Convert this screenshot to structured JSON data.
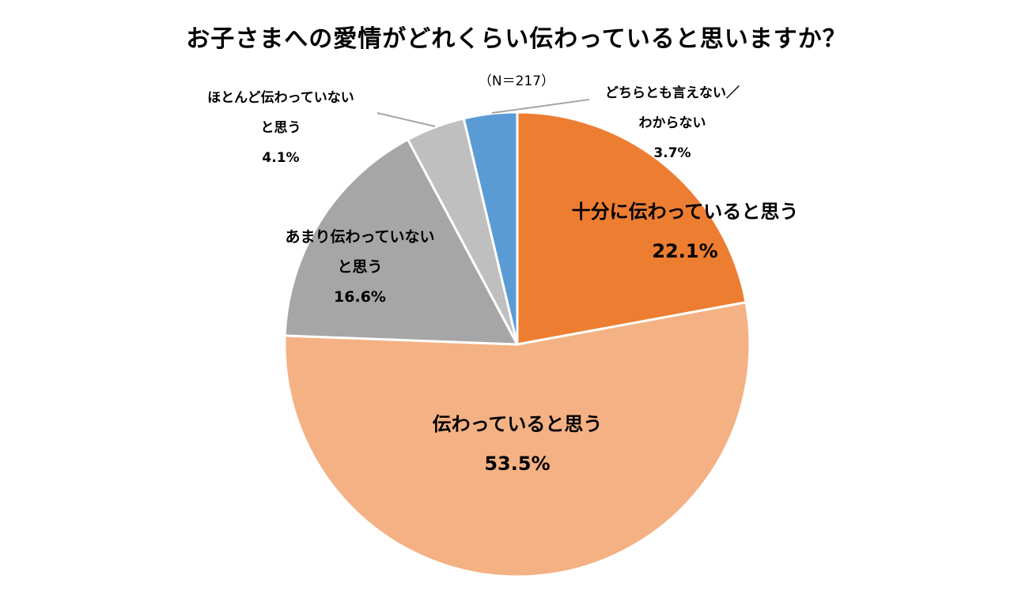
{
  "chart_data": {
    "type": "pie",
    "title": "お子さまへの愛情がどれくらい伝わっていると思いますか？",
    "subtitle": "（N＝217）",
    "slices": [
      {
        "label_lines": [
          "十分に伝わっていると思う"
        ],
        "value": 22.1,
        "value_label": "22.1%",
        "color": "#ED7D31"
      },
      {
        "label_lines": [
          "伝わっていると思う"
        ],
        "value": 53.5,
        "value_label": "53.5%",
        "color": "#F4B183"
      },
      {
        "label_lines": [
          "あまり伝わっていない",
          "と思う"
        ],
        "value": 16.6,
        "value_label": "16.6%",
        "color": "#A6A6A6"
      },
      {
        "label_lines": [
          "ほとんど伝わっていない",
          "と思う"
        ],
        "value": 4.1,
        "value_label": "4.1%",
        "color": "#BFBFBF"
      },
      {
        "label_lines": [
          "どちらとも言えない／",
          "わからない"
        ],
        "value": 3.7,
        "value_label": "3.7%",
        "color": "#5B9BD5"
      }
    ]
  }
}
